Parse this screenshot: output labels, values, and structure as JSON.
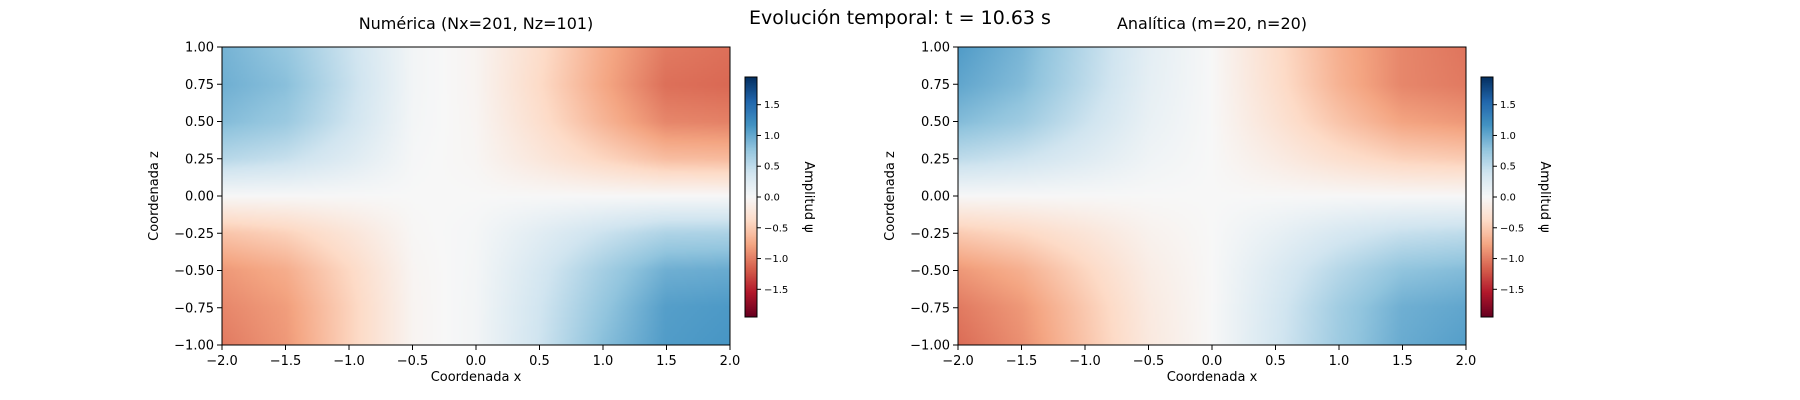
{
  "figure": {
    "suptitle": "Evolución temporal: t = 10.63 s"
  },
  "colormap": {
    "name": "RdBu",
    "stops": [
      "#67001f",
      "#b2182b",
      "#d6604d",
      "#f4a582",
      "#fddbc7",
      "#f7f7f7",
      "#d1e5f0",
      "#92c5de",
      "#4393c3",
      "#2166ac",
      "#053061"
    ]
  },
  "chart_data": [
    {
      "type": "heatmap",
      "title": "Numérica (Nx=201, Nz=101)",
      "xlabel": "Coordenada x",
      "ylabel": "Coordenada z",
      "xlim": [
        -2.0,
        2.0
      ],
      "ylim": [
        -1.0,
        1.0
      ],
      "xticks": [
        "−2.0",
        "−1.5",
        "−1.0",
        "−0.5",
        "0.0",
        "0.5",
        "1.0",
        "1.5",
        "2.0"
      ],
      "xtick_values": [
        -2.0,
        -1.5,
        -1.0,
        -0.5,
        0.0,
        0.5,
        1.0,
        1.5,
        2.0
      ],
      "yticks": [
        "1.00",
        "0.75",
        "0.50",
        "0.25",
        "0.00",
        "−0.25",
        "−0.50",
        "−0.75",
        "−1.00"
      ],
      "ytick_values": [
        1.0,
        0.75,
        0.5,
        0.25,
        0.0,
        -0.25,
        -0.5,
        -0.75,
        -1.0
      ],
      "grid": false,
      "field": {
        "description": "psi(x,z) sampled on a 9x9 grid (rows top to bottom z=1..-1, cols x=-2..2)",
        "z": [
          [
            0.92,
            0.75,
            0.42,
            0.05,
            -0.05,
            -0.35,
            -0.72,
            -1.02,
            -1.08
          ],
          [
            0.95,
            0.82,
            0.45,
            0.05,
            -0.05,
            -0.38,
            -0.75,
            -1.08,
            -1.12
          ],
          [
            0.85,
            0.72,
            0.4,
            0.04,
            -0.04,
            -0.33,
            -0.66,
            -0.95,
            -0.98
          ],
          [
            0.55,
            0.45,
            0.25,
            0.02,
            -0.03,
            -0.22,
            -0.42,
            -0.6,
            -0.62
          ],
          [
            0.0,
            0.0,
            0.0,
            0.0,
            0.0,
            0.0,
            0.0,
            0.0,
            0.0
          ],
          [
            -0.55,
            -0.45,
            -0.25,
            -0.02,
            0.03,
            0.22,
            0.42,
            0.6,
            0.62
          ],
          [
            -0.85,
            -0.72,
            -0.4,
            -0.04,
            0.04,
            0.33,
            0.66,
            0.95,
            0.98
          ],
          [
            -0.95,
            -0.82,
            -0.45,
            -0.05,
            0.05,
            0.38,
            0.75,
            1.08,
            1.12
          ],
          [
            -1.02,
            -0.85,
            -0.45,
            -0.05,
            0.05,
            0.4,
            0.82,
            1.1,
            1.15
          ]
        ]
      },
      "colorbar": {
        "label": "Amplitud ψ",
        "range": [
          -1.95,
          1.95
        ],
        "ticks": [
          "1.5",
          "1.0",
          "0.5",
          "0.0",
          "−0.5",
          "−1.0",
          "−1.5"
        ],
        "tick_values": [
          1.5,
          1.0,
          0.5,
          0.0,
          -0.5,
          -1.0,
          -1.5
        ]
      }
    },
    {
      "type": "heatmap",
      "title": "Analítica (m=20, n=20)",
      "xlabel": "Coordenada x",
      "ylabel": "Coordenada z",
      "xlim": [
        -2.0,
        2.0
      ],
      "ylim": [
        -1.0,
        1.0
      ],
      "xticks": [
        "−2.0",
        "−1.5",
        "−1.0",
        "−0.5",
        "0.0",
        "0.5",
        "1.0",
        "1.5",
        "2.0"
      ],
      "xtick_values": [
        -2.0,
        -1.5,
        -1.0,
        -0.5,
        0.0,
        0.5,
        1.0,
        1.5,
        2.0
      ],
      "yticks": [
        "1.00",
        "0.75",
        "0.50",
        "0.25",
        "0.00",
        "−0.25",
        "−0.50",
        "−0.75",
        "−1.00"
      ],
      "ytick_values": [
        1.0,
        0.75,
        0.5,
        0.25,
        0.0,
        -0.25,
        -0.5,
        -0.75,
        -1.0
      ],
      "grid": false,
      "field": {
        "description": "psi(x,z) sampled on a 9x9 grid (rows top to bottom z=1..-1, cols x=-2..2)",
        "z": [
          [
            1.1,
            0.9,
            0.55,
            0.2,
            0.0,
            -0.35,
            -0.7,
            -0.95,
            -1.05
          ],
          [
            1.02,
            0.85,
            0.52,
            0.18,
            0.0,
            -0.33,
            -0.68,
            -0.95,
            -1.02
          ],
          [
            0.85,
            0.7,
            0.42,
            0.14,
            0.0,
            -0.27,
            -0.55,
            -0.78,
            -0.85
          ],
          [
            0.5,
            0.4,
            0.25,
            0.08,
            0.0,
            -0.15,
            -0.32,
            -0.45,
            -0.5
          ],
          [
            0.0,
            0.0,
            0.0,
            0.0,
            0.0,
            0.0,
            0.0,
            0.0,
            0.0
          ],
          [
            -0.5,
            -0.4,
            -0.25,
            -0.08,
            0.0,
            0.15,
            0.32,
            0.45,
            0.5
          ],
          [
            -0.85,
            -0.7,
            -0.42,
            -0.14,
            0.0,
            0.27,
            0.55,
            0.78,
            0.85
          ],
          [
            -1.02,
            -0.85,
            -0.52,
            -0.18,
            0.0,
            0.33,
            0.68,
            0.95,
            1.02
          ],
          [
            -1.1,
            -0.9,
            -0.55,
            -0.2,
            0.0,
            0.35,
            0.7,
            0.98,
            1.08
          ]
        ]
      },
      "colorbar": {
        "label": "Amplitud ψ",
        "range": [
          -1.95,
          1.95
        ],
        "ticks": [
          "1.5",
          "1.0",
          "0.5",
          "0.0",
          "−0.5",
          "−1.0",
          "−1.5"
        ],
        "tick_values": [
          1.5,
          1.0,
          0.5,
          0.0,
          -0.5,
          -1.0,
          -1.5
        ]
      }
    }
  ]
}
